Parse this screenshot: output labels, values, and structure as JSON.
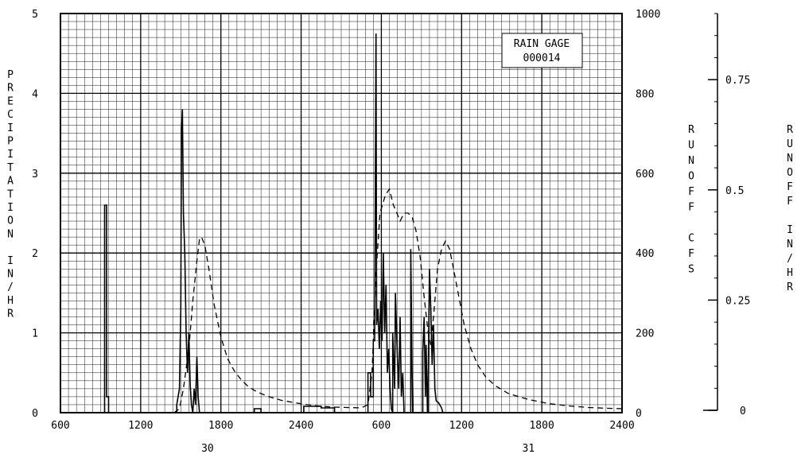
{
  "chart_data": {
    "type": "line",
    "title": "",
    "inset_label": [
      "RAIN GAGE",
      "000014"
    ],
    "left_axis": {
      "label": "PRECIPITATION IN/HR",
      "ylim": [
        0,
        5
      ],
      "ticks": [
        "0",
        "1",
        "2",
        "3",
        "4",
        "5"
      ]
    },
    "right_axis_cfs": {
      "label": "RUNOFF CFS",
      "ylim": [
        0,
        1000
      ],
      "ticks": [
        "0",
        "200",
        "400",
        "600",
        "800",
        "1000"
      ]
    },
    "right_axis_inhr": {
      "label": "RUNOFF IN/HR",
      "ylim": [
        0,
        0.9
      ],
      "ticks": [
        "0",
        "0.25",
        "0.5",
        "0.75"
      ]
    },
    "x_axis": {
      "unit": "hours",
      "xlim": [
        0,
        42
      ],
      "ticks": [
        "600",
        "1200",
        "1800",
        "2400",
        "600",
        "1200",
        "1800",
        "2400"
      ],
      "day_labels": [
        {
          "label": "30",
          "at": 11
        },
        {
          "label": "31",
          "at": 35
        }
      ]
    },
    "grid": true,
    "series": [
      {
        "name": "",
        "style": "solid",
        "axis": "left",
        "points": [
          [
            0,
            0
          ],
          [
            3.3,
            0
          ],
          [
            3.3,
            2.6
          ],
          [
            3.45,
            2.6
          ],
          [
            3.45,
            0.2
          ],
          [
            3.6,
            0.2
          ],
          [
            3.6,
            0
          ],
          [
            8.7,
            0
          ],
          [
            8.7,
            0.1
          ],
          [
            8.9,
            0.3
          ],
          [
            9.0,
            1.3
          ],
          [
            9.05,
            3.5
          ],
          [
            9.12,
            3.8
          ],
          [
            9.2,
            2.5
          ],
          [
            9.3,
            2.0
          ],
          [
            9.4,
            1.0
          ],
          [
            9.5,
            0.5
          ],
          [
            9.6,
            1.0
          ],
          [
            9.7,
            0.35
          ],
          [
            9.8,
            0.1
          ],
          [
            9.9,
            0
          ],
          [
            10.0,
            0.3
          ],
          [
            10.1,
            0.1
          ],
          [
            10.2,
            0.7
          ],
          [
            10.3,
            0.2
          ],
          [
            10.4,
            0
          ],
          [
            14.5,
            0
          ],
          [
            14.5,
            0.05
          ],
          [
            15.0,
            0.05
          ],
          [
            15.0,
            0
          ],
          [
            18.2,
            0
          ],
          [
            18.2,
            0.08
          ],
          [
            19.5,
            0.08
          ],
          [
            19.5,
            0.06
          ],
          [
            20.5,
            0.06
          ],
          [
            20.5,
            0
          ],
          [
            23.0,
            0
          ],
          [
            23.0,
            0.5
          ],
          [
            23.2,
            0.5
          ],
          [
            23.2,
            0.2
          ],
          [
            23.4,
            0.2
          ],
          [
            23.4,
            0.9
          ],
          [
            23.5,
            0.9
          ],
          [
            23.6,
            4.75
          ],
          [
            23.65,
            1.1
          ],
          [
            23.75,
            1.3
          ],
          [
            23.85,
            0.8
          ],
          [
            23.95,
            1.4
          ],
          [
            24.05,
            0.9
          ],
          [
            24.15,
            2.0
          ],
          [
            24.25,
            1.0
          ],
          [
            24.35,
            1.6
          ],
          [
            24.45,
            0.5
          ],
          [
            24.55,
            0.8
          ],
          [
            24.65,
            0.3
          ],
          [
            24.75,
            0.05
          ],
          [
            24.85,
            0
          ],
          [
            24.85,
            1.0
          ],
          [
            25.0,
            0.3
          ],
          [
            25.05,
            1.5
          ],
          [
            25.2,
            0.7
          ],
          [
            25.3,
            0.3
          ],
          [
            25.4,
            1.2
          ],
          [
            25.5,
            0.2
          ],
          [
            25.6,
            0.5
          ],
          [
            25.7,
            0
          ],
          [
            26.2,
            0
          ],
          [
            26.2,
            2.05
          ],
          [
            26.3,
            0.5
          ],
          [
            26.35,
            0
          ],
          [
            27.1,
            0
          ],
          [
            27.1,
            0.75
          ],
          [
            27.2,
            1.2
          ],
          [
            27.3,
            0.2
          ],
          [
            27.35,
            0.85
          ],
          [
            27.45,
            0
          ],
          [
            27.5,
            0
          ],
          [
            27.5,
            0.4
          ],
          [
            27.6,
            1.8
          ],
          [
            27.7,
            1.3
          ],
          [
            27.8,
            0.6
          ],
          [
            27.9,
            1.1
          ],
          [
            28.0,
            0.3
          ],
          [
            28.1,
            0.15
          ],
          [
            28.3,
            0.12
          ],
          [
            28.5,
            0.06
          ],
          [
            28.6,
            0
          ]
        ]
      },
      {
        "name": "",
        "style": "dashed",
        "axis": "right_cfs",
        "points": [
          [
            8.5,
            0
          ],
          [
            8.9,
            10
          ],
          [
            9.2,
            60
          ],
          [
            9.6,
            160
          ],
          [
            9.9,
            280
          ],
          [
            10.2,
            380
          ],
          [
            10.4,
            435
          ],
          [
            10.55,
            440
          ],
          [
            10.8,
            420
          ],
          [
            11.1,
            360
          ],
          [
            11.5,
            270
          ],
          [
            12.0,
            190
          ],
          [
            12.5,
            135
          ],
          [
            13.0,
            105
          ],
          [
            13.5,
            83
          ],
          [
            14.0,
            67
          ],
          [
            14.5,
            56
          ],
          [
            15.0,
            48
          ],
          [
            15.5,
            41
          ],
          [
            16.5,
            31
          ],
          [
            17.5,
            25
          ],
          [
            18.5,
            20
          ],
          [
            19.5,
            16
          ],
          [
            20.5,
            14
          ],
          [
            21.5,
            13
          ],
          [
            22.5,
            12
          ],
          [
            23.0,
            20
          ],
          [
            23.3,
            100
          ],
          [
            23.6,
            350
          ],
          [
            23.9,
            500
          ],
          [
            24.3,
            545
          ],
          [
            24.6,
            560
          ],
          [
            24.9,
            520
          ],
          [
            25.1,
            505
          ],
          [
            25.4,
            480
          ],
          [
            25.7,
            500
          ],
          [
            26.0,
            500
          ],
          [
            26.3,
            490
          ],
          [
            26.6,
            455
          ],
          [
            26.9,
            390
          ],
          [
            27.2,
            290
          ],
          [
            27.5,
            200
          ],
          [
            27.7,
            170
          ],
          [
            27.9,
            240
          ],
          [
            28.2,
            360
          ],
          [
            28.5,
            410
          ],
          [
            28.8,
            430
          ],
          [
            29.1,
            410
          ],
          [
            29.4,
            360
          ],
          [
            29.8,
            290
          ],
          [
            30.2,
            220
          ],
          [
            30.7,
            160
          ],
          [
            31.2,
            120
          ],
          [
            31.8,
            90
          ],
          [
            32.5,
            68
          ],
          [
            33.5,
            48
          ],
          [
            35.0,
            33
          ],
          [
            36.5,
            23
          ],
          [
            38.0,
            17
          ],
          [
            39.5,
            13
          ],
          [
            41.0,
            11
          ],
          [
            42.0,
            10
          ]
        ]
      }
    ]
  }
}
